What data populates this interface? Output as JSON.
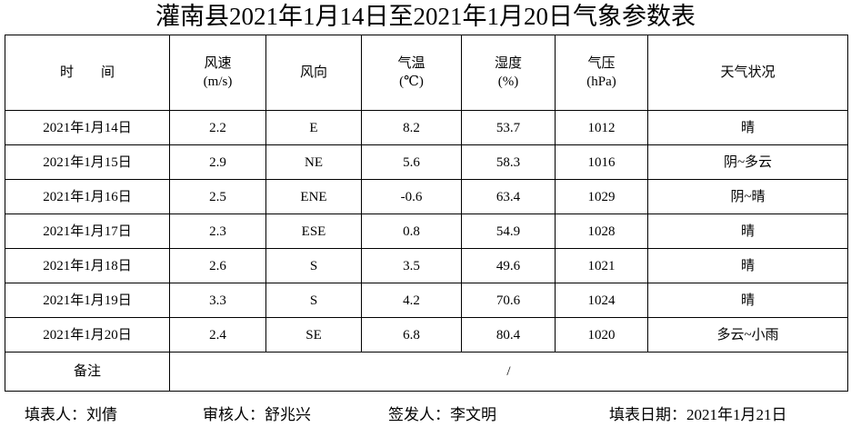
{
  "title": "灌南县2021年1月14日至2021年1月20日气象参数表",
  "table": {
    "header": [
      [
        "时        间"
      ],
      [
        "风速",
        "(m/s)"
      ],
      [
        "风向"
      ],
      [
        "气温",
        "(℃)"
      ],
      [
        "湿度",
        "(%)"
      ],
      [
        "气压",
        "(hPa)"
      ],
      [
        "天气状况"
      ]
    ],
    "rows": [
      [
        "2021年1月14日",
        "2.2",
        "E",
        "8.2",
        "53.7",
        "1012",
        "晴"
      ],
      [
        "2021年1月15日",
        "2.9",
        "NE",
        "5.6",
        "58.3",
        "1016",
        "阴~多云"
      ],
      [
        "2021年1月16日",
        "2.5",
        "ENE",
        "-0.6",
        "63.4",
        "1029",
        "阴~晴"
      ],
      [
        "2021年1月17日",
        "2.3",
        "ESE",
        "0.8",
        "54.9",
        "1028",
        "晴"
      ],
      [
        "2021年1月18日",
        "2.6",
        "S",
        "3.5",
        "49.6",
        "1021",
        "晴"
      ],
      [
        "2021年1月19日",
        "3.3",
        "S",
        "4.2",
        "70.6",
        "1024",
        "晴"
      ],
      [
        "2021年1月20日",
        "2.4",
        "SE",
        "6.8",
        "80.4",
        "1020",
        "多云~小雨"
      ]
    ],
    "remark": [
      "备注",
      "/"
    ]
  },
  "footer": [
    "填表人：刘倩",
    "审核人：舒兆兴",
    "签发人：李文明",
    "填表日期：2021年1月21日"
  ]
}
